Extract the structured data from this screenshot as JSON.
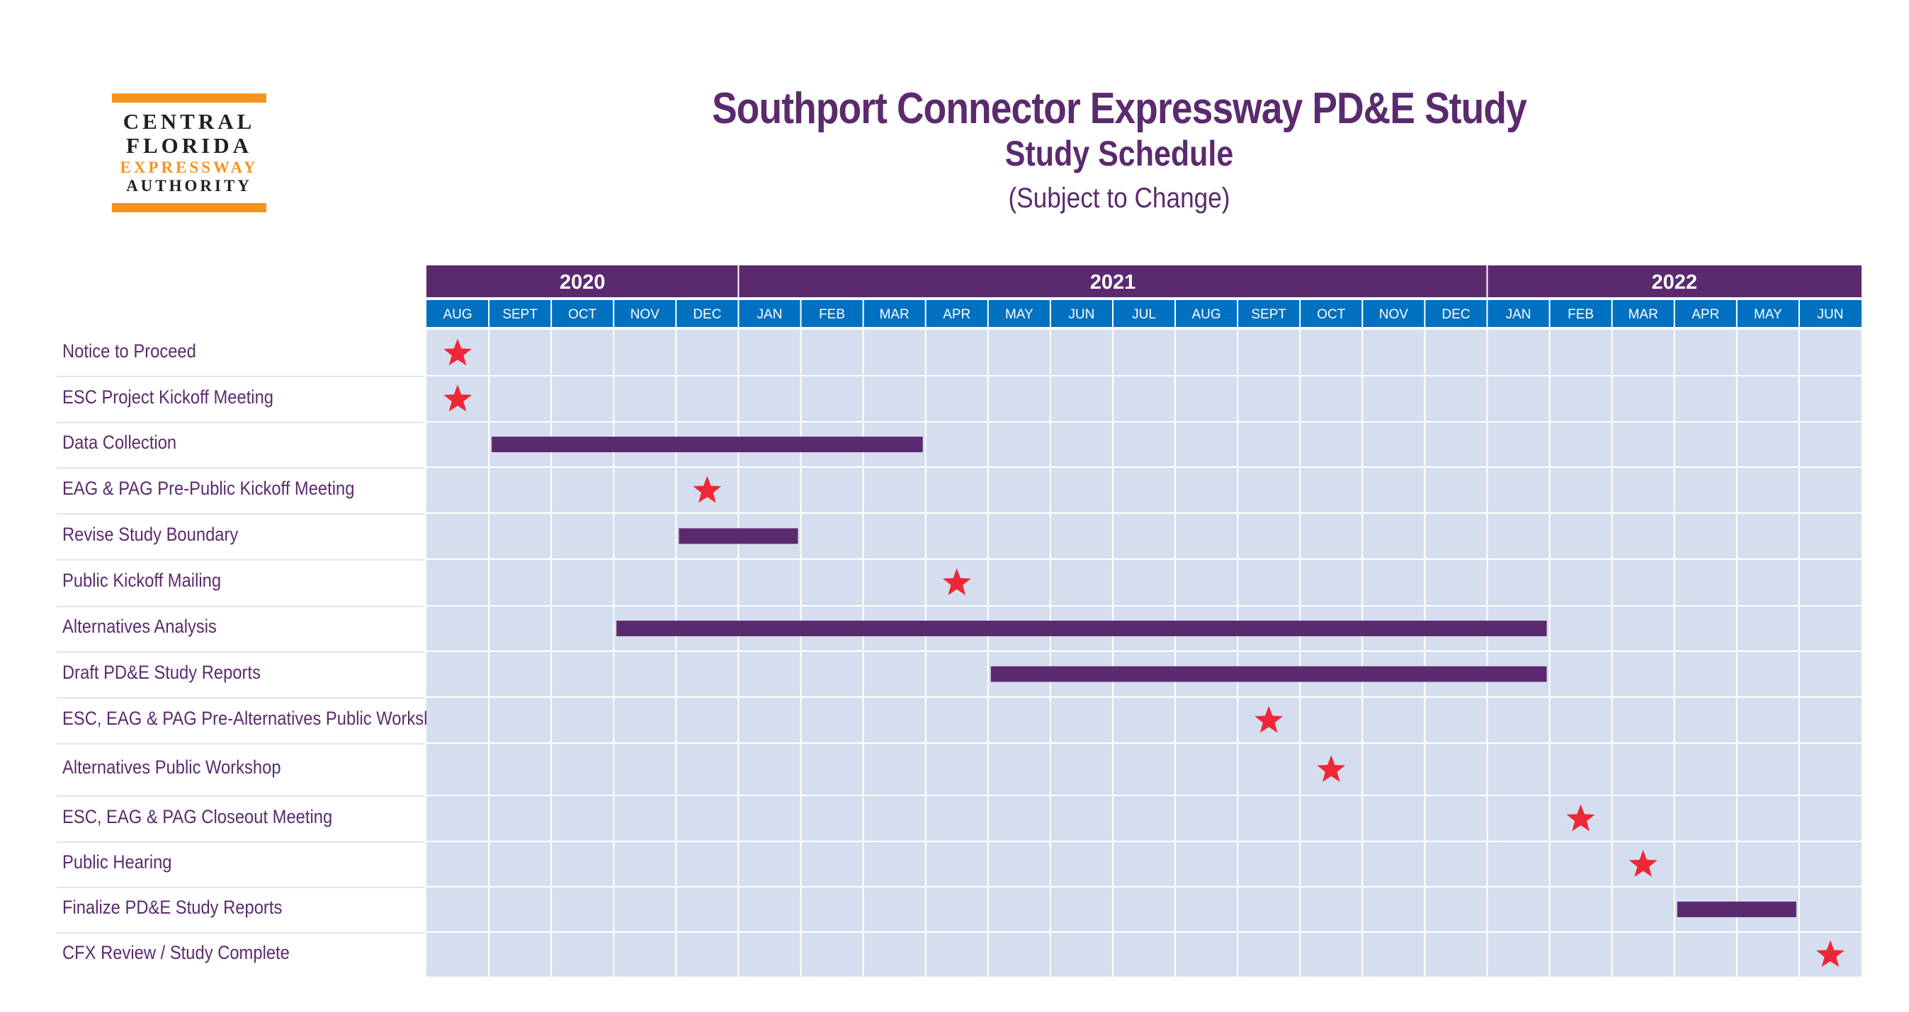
{
  "logo": {
    "line1": "CENTRAL",
    "line2": "FLORIDA",
    "line3": "EXPRESSWAY",
    "line4": "AUTHORITY"
  },
  "header": {
    "title": "Southport Connector Expressway PD&E Study",
    "subtitle": "Study Schedule",
    "note": "(Subject to Change)"
  },
  "colors": {
    "purple": "#5b2a6e",
    "month_header": "#0070c0",
    "grid_bg": "#d5deee",
    "grid_line": "#ffffff",
    "star": "#ee2737",
    "logo_orange": "#f7941d"
  },
  "chart_data": {
    "type": "gantt",
    "years": [
      {
        "label": "2020",
        "start": 0,
        "span": 5
      },
      {
        "label": "2021",
        "start": 5,
        "span": 12
      },
      {
        "label": "2022",
        "start": 17,
        "span": 6
      }
    ],
    "months": [
      "AUG",
      "SEPT",
      "OCT",
      "NOV",
      "DEC",
      "JAN",
      "FEB",
      "MAR",
      "APR",
      "MAY",
      "JUN",
      "JUL",
      "AUG",
      "SEPT",
      "OCT",
      "NOV",
      "DEC",
      "JAN",
      "FEB",
      "MAR",
      "APR",
      "MAY",
      "JUN"
    ],
    "tasks": [
      {
        "label": "Notice to Proceed",
        "kind": "milestone",
        "at": "AUG 2020"
      },
      {
        "label": "ESC Project Kickoff Meeting",
        "kind": "milestone",
        "at": "AUG 2020"
      },
      {
        "label": "Data Collection",
        "kind": "bar",
        "start": "SEPT 2020",
        "end": "MAR 2021"
      },
      {
        "label": "EAG & PAG Pre-Public Kickoff Meeting",
        "kind": "milestone",
        "at": "DEC 2020"
      },
      {
        "label": "Revise Study Boundary",
        "kind": "bar",
        "start": "DEC 2020",
        "end": "JAN 2021"
      },
      {
        "label": "Public Kickoff Mailing",
        "kind": "milestone",
        "at": "APR 2021"
      },
      {
        "label": "Alternatives Analysis",
        "kind": "bar",
        "start": "NOV 2020",
        "end": "JAN 2022"
      },
      {
        "label": "Draft PD&E Study Reports",
        "kind": "bar",
        "start": "MAY 2021",
        "end": "JAN 2022"
      },
      {
        "label": "ESC, EAG & PAG Pre-Alternatives Public Workshop",
        "kind": "milestone",
        "at": "SEPT 2021"
      },
      {
        "label": "Alternatives Public Workshop",
        "kind": "milestone",
        "at": "OCT 2021"
      },
      {
        "label": "ESC, EAG & PAG Closeout Meeting",
        "kind": "milestone",
        "at": "FEB 2022"
      },
      {
        "label": "Public Hearing",
        "kind": "milestone",
        "at": "MAR 2022"
      },
      {
        "label": "Finalize PD&E Study Reports",
        "kind": "bar",
        "start": "APR 2022",
        "end": "MAY 2022"
      },
      {
        "label": "CFX Review / Study Complete",
        "kind": "milestone",
        "at": "JUN 2022"
      }
    ]
  }
}
